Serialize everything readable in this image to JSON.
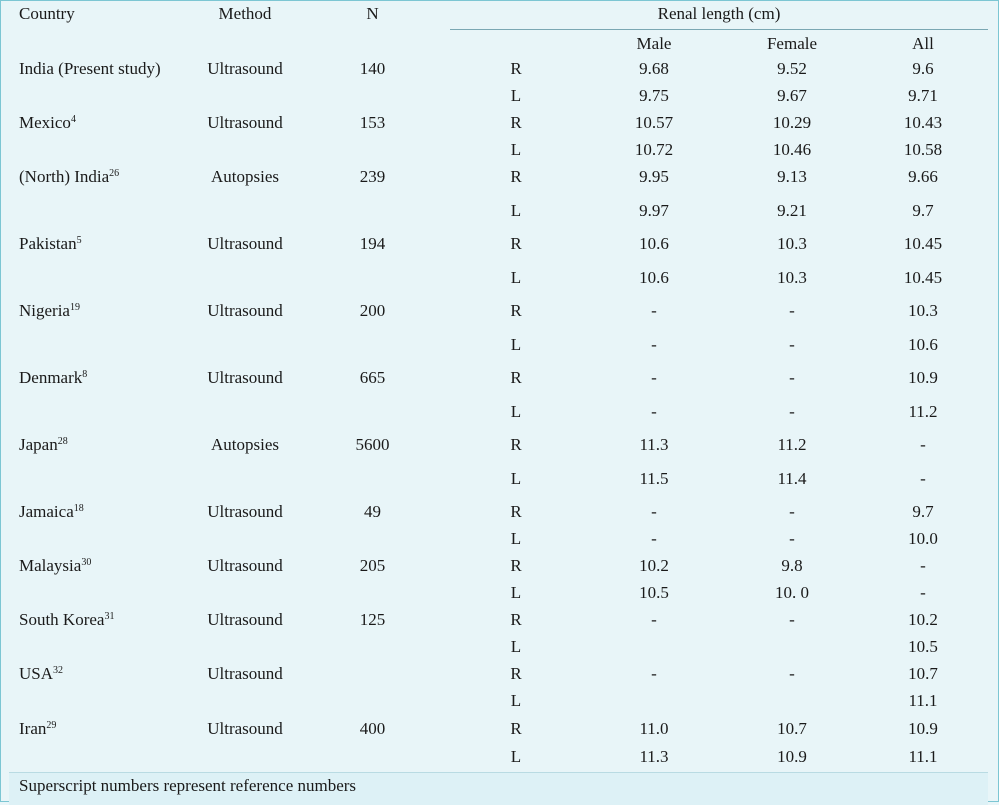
{
  "headers": {
    "country": "Country",
    "method": "Method",
    "n": "N",
    "renal_length": "Renal length (cm)",
    "male": "Male",
    "female": "Female",
    "all": "All"
  },
  "rows": [
    {
      "country": "India (Present study)",
      "sup": "",
      "method": "Ultrasound",
      "n": "140",
      "sides": [
        {
          "side": "R",
          "male": "9.68",
          "female": "9.52",
          "all": "9.6"
        },
        {
          "side": "L",
          "male": "9.75",
          "female": "9.67",
          "all": "9.71"
        }
      ]
    },
    {
      "country": "Mexico",
      "sup": "4",
      "method": "Ultrasound",
      "n": "153",
      "sides": [
        {
          "side": "R",
          "male": "10.57",
          "female": "10.29",
          "all": "10.43"
        },
        {
          "side": "L",
          "male": "10.72",
          "female": "10.46",
          "all": "10.58"
        }
      ]
    },
    {
      "country": "(North) India",
      "sup": "26",
      "method": "Autopsies",
      "n": "239",
      "sides": [
        {
          "side": "R",
          "male": "9.95",
          "female": "9.13",
          "all": "9.66"
        },
        {
          "side": "L",
          "male": "9.97",
          "female": "9.21",
          "all": "9.7"
        }
      ]
    },
    {
      "country": "Pakistan",
      "sup": "5",
      "method": "Ultrasound",
      "n": "194",
      "sides": [
        {
          "side": "R",
          "male": "10.6",
          "female": "10.3",
          "all": "10.45"
        },
        {
          "side": "L",
          "male": "10.6",
          "female": "10.3",
          "all": "10.45"
        }
      ]
    },
    {
      "country": "Nigeria",
      "sup": "19",
      "method": "Ultrasound",
      "n": "200",
      "sides": [
        {
          "side": "R",
          "male": "-",
          "female": "-",
          "all": "10.3"
        },
        {
          "side": "L",
          "male": "-",
          "female": "-",
          "all": "10.6"
        }
      ]
    },
    {
      "country": "Denmark",
      "sup": "8",
      "method": "Ultrasound",
      "n": "665",
      "sides": [
        {
          "side": "R",
          "male": "-",
          "female": "-",
          "all": "10.9"
        },
        {
          "side": "L",
          "male": "-",
          "female": "-",
          "all": "11.2"
        }
      ]
    },
    {
      "country": "Japan",
      "sup": "28",
      "method": "Autopsies",
      "n": "5600",
      "sides": [
        {
          "side": "R",
          "male": "11.3",
          "female": "11.2",
          "all": "-"
        },
        {
          "side": "L",
          "male": "11.5",
          "female": "11.4",
          "all": "-"
        }
      ]
    },
    {
      "country": "Jamaica",
      "sup": "18",
      "method": "Ultrasound",
      "n": "49",
      "sides": [
        {
          "side": "R",
          "male": "-",
          "female": "-",
          "all": "9.7"
        },
        {
          "side": "L",
          "male": "-",
          "female": "-",
          "all": "10.0"
        }
      ]
    },
    {
      "country": "Malaysia",
      "sup": "30",
      "method": "Ultrasound",
      "n": "205",
      "sides": [
        {
          "side": "R",
          "male": "10.2",
          "female": "9.8",
          "all": "-"
        },
        {
          "side": "L",
          "male": "10.5",
          "female": "10. 0",
          "all": "-"
        }
      ]
    },
    {
      "country": "South Korea",
      "sup": "31",
      "method": "Ultrasound",
      "n": "125",
      "sides": [
        {
          "side": "R",
          "male": "-",
          "female": "-",
          "all": "10.2"
        },
        {
          "side": "L",
          "male": "",
          "female": "",
          "all": "10.5"
        }
      ]
    },
    {
      "country": "USA",
      "sup": "32",
      "method": "Ultrasound",
      "n": "",
      "sides": [
        {
          "side": "R",
          "male": "-",
          "female": "-",
          "all": "10.7"
        },
        {
          "side": "L",
          "male": "",
          "female": "",
          "all": "11.1"
        }
      ]
    },
    {
      "country": "Iran",
      "sup": "29",
      "method": "Ultrasound",
      "n": "400",
      "sides": [
        {
          "side": "R",
          "male": "11.0",
          "female": "10.7",
          "all": "10.9"
        },
        {
          "side": "L",
          "male": "11.3",
          "female": "10.9",
          "all": "11.1"
        }
      ]
    }
  ],
  "footer": "Superscript numbers represent reference numbers"
}
